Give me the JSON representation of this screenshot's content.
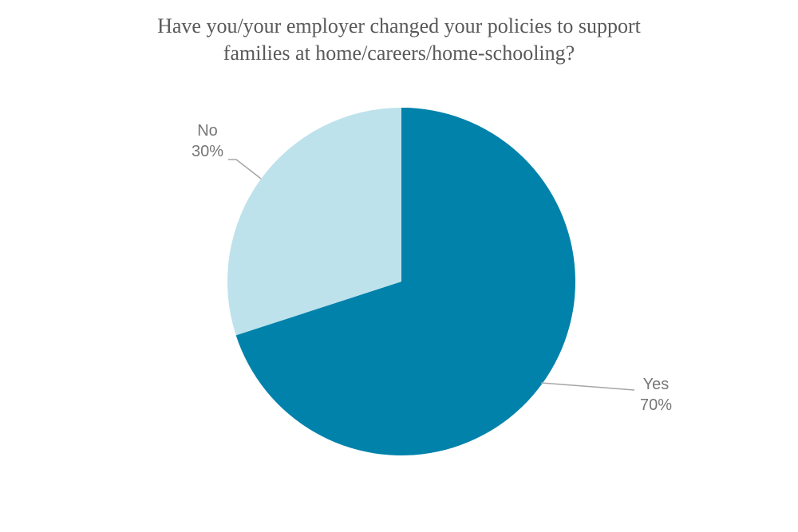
{
  "chart_data": {
    "type": "pie",
    "title": [
      "Have you/your employer changed your policies to support",
      "families at home/careers/home-schooling?"
    ],
    "slices": [
      {
        "label": "Yes",
        "value": 70,
        "value_label": "70%",
        "color": "#0082AB"
      },
      {
        "label": "No",
        "value": 30,
        "value_label": "30%",
        "color": "#BDE2EC"
      }
    ],
    "legend": "none",
    "label_color": "#767676",
    "leader_color": "#A6A6A6"
  }
}
